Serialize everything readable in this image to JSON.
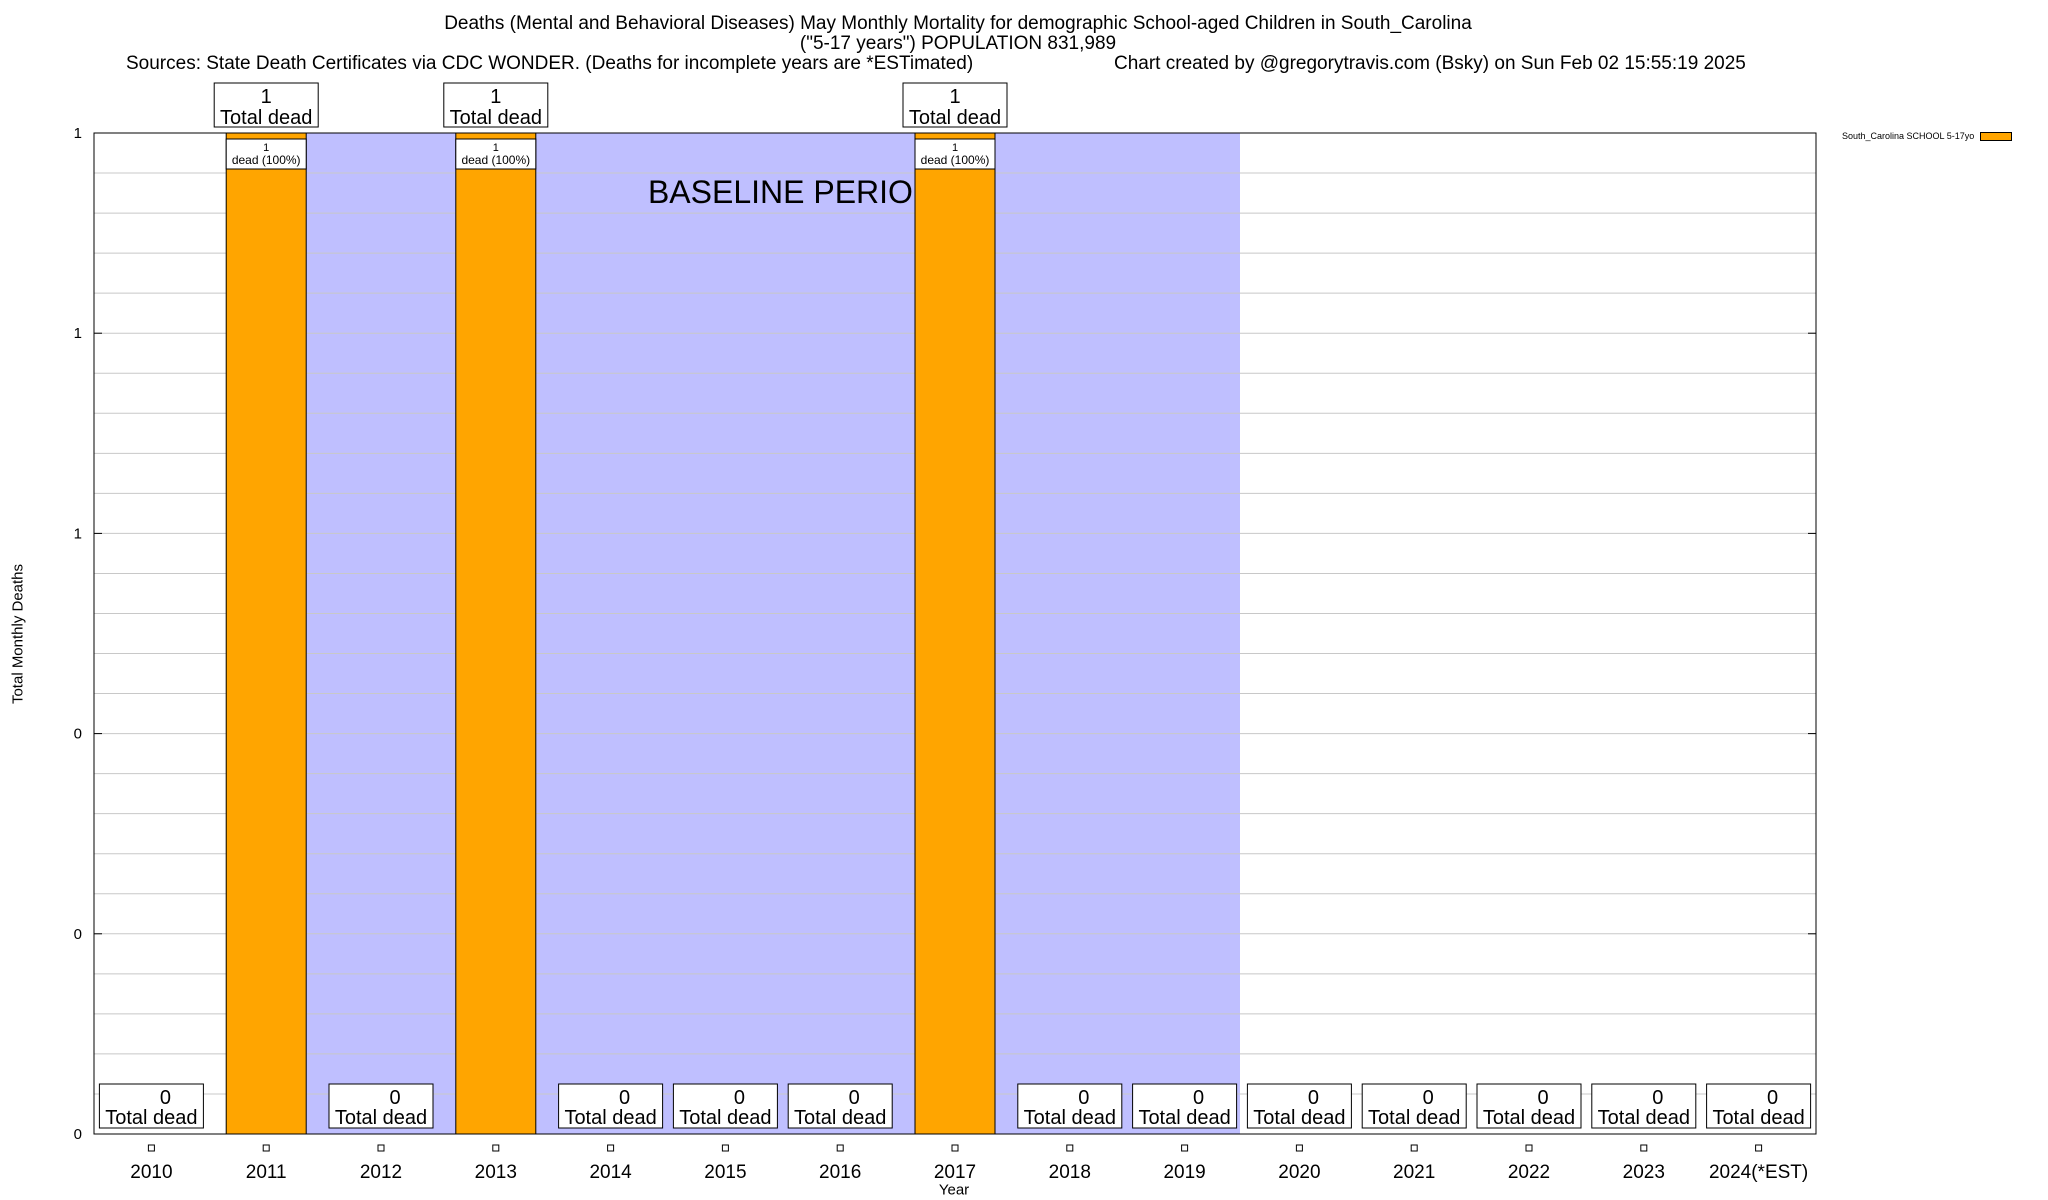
{
  "title": {
    "line1": "Deaths (Mental and Behavioral Diseases) May Monthly Mortality for demographic School-aged Children in South_Carolina",
    "line2": "(\"5-17 years\") POPULATION 831,989",
    "sources": "Sources: State Death Certificates via CDC WONDER. (Deaths for incomplete years are *ESTimated)",
    "credit": "Chart created by @gregorytravis.com (Bsky) on Sun Feb 02 15:55:19 2025"
  },
  "chart_data": {
    "type": "bar",
    "categories": [
      "2010",
      "2011",
      "2012",
      "2013",
      "2014",
      "2015",
      "2016",
      "2017",
      "2018",
      "2019",
      "2020",
      "2021",
      "2022",
      "2023",
      "2024(*EST)"
    ],
    "series": [
      {
        "name": "South_Carolina SCHOOL 5-17yo",
        "values": [
          0,
          1,
          0,
          1,
          0,
          0,
          0,
          1,
          0,
          0,
          0,
          0,
          0,
          0,
          0
        ]
      }
    ],
    "ylim": [
      0,
      1
    ],
    "ytick_labels": [
      "0",
      "0",
      "0",
      "1",
      "1",
      "1"
    ],
    "xlabel": "Year",
    "ylabel": "Total Monthly Deaths",
    "total_label_word": "Total dead",
    "inner_label_word": "dead (100%)",
    "baseline": {
      "label": "BASELINE PERIOD",
      "start": "2012",
      "end": "2019"
    },
    "legend_position": "top-right",
    "grid": true,
    "colors": {
      "bar": "#ffa500",
      "bar_top": "#ffa500",
      "baseline": "#bfbfff",
      "grid": "#c8c8c8"
    }
  }
}
